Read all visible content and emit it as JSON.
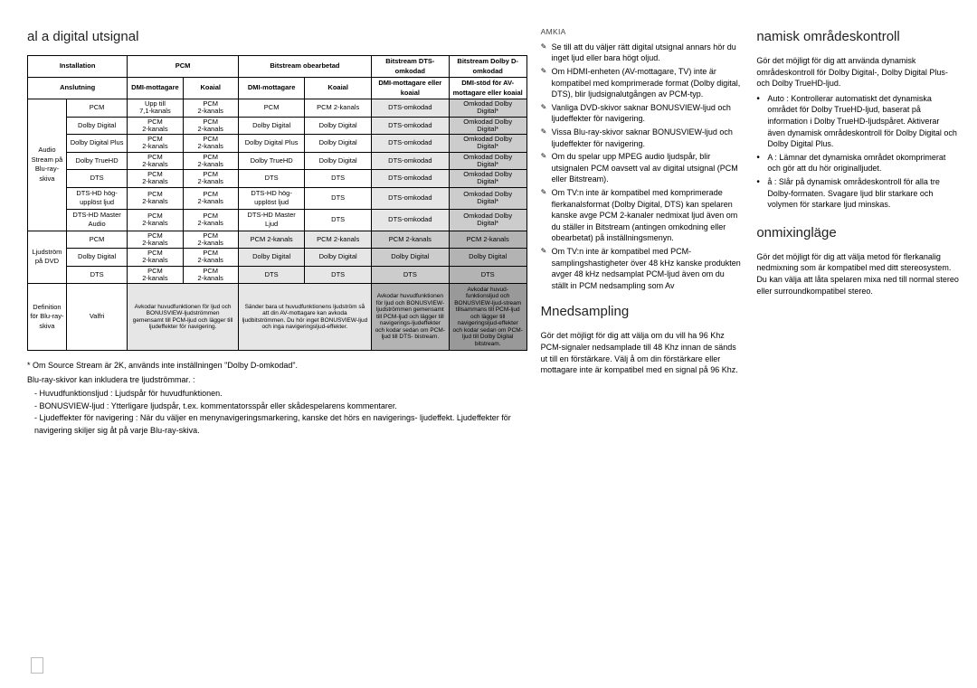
{
  "left": {
    "title": "al a digital utsignal",
    "table": {
      "header1": [
        "Installation",
        "PCM",
        "Bitstream obearbetad",
        "Bitstream DTS-omkodad",
        "Bitstream Dolby D-omkodad"
      ],
      "header2": [
        "Anslutning",
        "DMI-mottagare",
        "Koaial",
        "DMI-mottagare",
        "Koaial",
        "DMI-mottagare eller koaial",
        "DMI-stöd för AV-mottagare eller koaial"
      ],
      "group1_label": "Audio Stream på Blu-ray-skiva",
      "group1_rows": [
        {
          "name": "PCM",
          "c1a": "Upp till",
          "c1b": "7,1-kanals",
          "c2a": "PCM",
          "c2b": "2-kanals",
          "c3": "PCM",
          "c4": "PCM 2-kanals",
          "c5": "DTS-omkodad",
          "c6a": "Omkodad Dolby",
          "c6b": "Digital*"
        },
        {
          "name": "Dolby Digital",
          "c1a": "PCM",
          "c1b": "2-kanals",
          "c2a": "PCM",
          "c2b": "2-kanals",
          "c3": "Dolby Digital",
          "c4": "Dolby Digital",
          "c5": "DTS-omkodad",
          "c6a": "Omkodad Dolby",
          "c6b": "Digital*"
        },
        {
          "name": "Dolby Digital Plus",
          "c1a": "PCM",
          "c1b": "2-kanals",
          "c2a": "PCM",
          "c2b": "2-kanals",
          "c3": "Dolby Digital Plus",
          "c4": "Dolby Digital",
          "c5": "DTS-omkodad",
          "c6a": "Omkodad Dolby",
          "c6b": "Digital*"
        },
        {
          "name": "Dolby TrueHD",
          "c1a": "PCM",
          "c1b": "2-kanals",
          "c2a": "PCM",
          "c2b": "2-kanals",
          "c3": "Dolby TrueHD",
          "c4": "Dolby Digital",
          "c5": "DTS-omkodad",
          "c6a": "Omkodad Dolby",
          "c6b": "Digital*"
        },
        {
          "name": "DTS",
          "c1a": "PCM",
          "c1b": "2-kanals",
          "c2a": "PCM",
          "c2b": "2-kanals",
          "c3": "DTS",
          "c4": "DTS",
          "c5": "DTS-omkodad",
          "c6a": "Omkodad Dolby",
          "c6b": "Digital*"
        },
        {
          "name": "DTS-HD hög-upplöst ljud",
          "c1a": "PCM",
          "c1b": "2-kanals",
          "c2a": "PCM",
          "c2b": "2-kanals",
          "c3": "DTS-HD hög-upplöst ljud",
          "c4": "DTS",
          "c5": "DTS-omkodad",
          "c6a": "Omkodad Dolby",
          "c6b": "Digital*"
        },
        {
          "name": "DTS-HD Master Audio",
          "c1a": "PCM",
          "c1b": "2-kanals",
          "c2a": "PCM",
          "c2b": "2-kanals",
          "c3": "DTS-HD Master Ljud",
          "c4": "DTS",
          "c5": "DTS-omkodad",
          "c6a": "Omkodad Dolby",
          "c6b": "Digital*"
        }
      ],
      "group2_label": "Ljudström på DVD",
      "group2_rows": [
        {
          "name": "PCM",
          "c1a": "PCM",
          "c1b": "2-kanals",
          "c2a": "PCM",
          "c2b": "2-kanals",
          "c3": "PCM 2-kanals",
          "c4": "PCM 2-kanals",
          "c5": "PCM 2-kanals",
          "c6a": "PCM 2-kanals",
          "c6b": ""
        },
        {
          "name": "Dolby Digital",
          "c1a": "PCM",
          "c1b": "2-kanals",
          "c2a": "PCM",
          "c2b": "2-kanals",
          "c3": "Dolby Digital",
          "c4": "Dolby Digital",
          "c5": "Dolby Digital",
          "c6a": "Dolby Digital",
          "c6b": ""
        },
        {
          "name": "DTS",
          "c1a": "PCM",
          "c1b": "2-kanals",
          "c2a": "PCM",
          "c2b": "2-kanals",
          "c3": "DTS",
          "c4": "DTS",
          "c5": "DTS",
          "c6a": "DTS",
          "c6b": ""
        }
      ],
      "def_label": "Definition för Blu-ray-skiva",
      "def_row": {
        "c0": "Valfri",
        "c1": "Avkodar huvudfunktionen för ljud och BONUSVIEW-ljudströmmen gemensamt till PCM-ljud och lägger till ljudeffekter för navigering.",
        "c2": "Sänder bara ut huvudfunktionens ljudström så att din AV-mottagare kan avkoda ljudbitströmmen. Du hör inget BONUSVIEW-ljud och inga navigeringsljud-effekter.",
        "c3": "Avkodar huvudfunktionen för ljud och BONUSVIEW-ljudströmmen gemensamt till PCM-ljud och lägger till navigerings-ljudeffekter och kodar sedan om PCM-ljud till DTS- bistream.",
        "c4": "Avkodar huvud-funktionsljud och BONUSVIEW-ljud-stream tillsammans till PCM-ljud och lägger till navigeringsljud-effekter och kodar sedan om PCM-ljud till Dolby Digital bitstream."
      }
    },
    "footnote_star": "*  Om Source Stream är 2K, används inte inställningen \"Dolby D-omkodad\".",
    "footnote_intro": "Blu-ray-skivor kan inkludera tre ljudströmmar. :",
    "footnote_items": [
      "Huvudfunktionsljud : Ljudspår för huvudfunktionen.",
      "BONUSVIEW-ljud : Ytterligare ljudspår, t.ex. kommentatorsspår eller skådespelarens kommentarer.",
      "Ljudeffekter för navigering : När du väljer en menynavigeringsmarkering, kanske det hörs en navigerings- ljudeffekt. Ljudeffekter för navigering skiljer sig åt på varje Blu-ray-skiva."
    ]
  },
  "mid": {
    "amkia": "AMKIA",
    "bullets": [
      "Se till att du väljer rätt digital utsignal annars hör du inget ljud eller bara högt oljud.",
      "Om HDMI-enheten (AV-mottagare, TV) inte är kompatibel med komprimerade format (Dolby digital, DTS), blir ljudsignalutgången av PCM-typ.",
      "Vanliga DVD-skivor saknar BONUSVIEW-ljud och ljudeffekter för navigering.",
      "Vissa Blu-ray-skivor saknar BONUSVIEW-ljud och ljudeffekter för navigering.",
      "Om du spelar upp MPEG audio ljudspår, blir utsignalen PCM oavsett val av digital utsignal (PCM eller Bitstream).",
      "Om TV:n inte är kompatibel med komprimerade flerkanalsformat (Dolby Digital, DTS) kan spelaren kanske avge PCM 2-kanaler nedmixat ljud även om du ställer in Bitstream (antingen omkodning eller obearbetat) på inställningsmenyn.",
      "Om TV:n inte är kompatibel med PCM-samplingshastigheter över 48 kHz kanske produkten avger 48 kHz nedsamplat PCM-ljud även om du ställt in PCM nedsampling som Av"
    ],
    "mned_title": "Mnedsampling",
    "mned_para": "Gör det möjligt för dig att välja om du vill ha 96 Khz PCM-signaler nedsamplade till 48 Khz innan de sänds ut till en förstärkare. Välj å om din förstärkare eller mottagare inte är kompatibel med en signal på 96 Khz."
  },
  "right": {
    "nam_title": "namisk områdeskontroll",
    "nam_para": "Gör det möjligt för dig att använda dynamisk områdeskontroll för Dolby Digital-, Dolby Digital Plus- och Dolby TrueHD-ljud.",
    "nam_items": [
      "Auto : Kontrollerar automatiskt det dynamiska området för Dolby TrueHD-ljud, baserat på information i Dolby TrueHD-ljudspåret. Aktiverar även dynamisk områdeskontroll för Dolby Digital och Dolby Digital Plus.",
      "A : Lämnar det dynamiska området okomprimerat och gör att du hör originalljudet.",
      "å : Slår på dynamisk områdeskontroll för alla tre Dolby-formaten. Svagare ljud blir starkare och volymen för starkare ljud minskas."
    ],
    "mix_title": "onmixingläge",
    "mix_para": "Gör det möjligt för dig att välja metod för flerkanalig nedmixning som är kompatibel med ditt stereosystem. Du kan välja att låta spelaren mixa ned till normal stereo eller surroundkompatibel stereo."
  }
}
